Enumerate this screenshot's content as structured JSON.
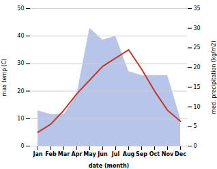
{
  "chart_data": {
    "type": "line",
    "categories": [
      "Jan",
      "Feb",
      "Mar",
      "Apr",
      "May",
      "Jun",
      "Jul",
      "Aug",
      "Sep",
      "Oct",
      "Nov",
      "Dec"
    ],
    "xlabel": "date (month)",
    "ylabel": "max temp (C)",
    "y2label": "med. precipitation (kg/m2)",
    "series": [
      {
        "type": "area",
        "axis": "y2",
        "color": "#b8c4e8",
        "values": [
          9,
          8,
          8,
          13,
          30,
          27,
          28,
          19,
          18,
          18,
          18,
          7
        ]
      },
      {
        "type": "line",
        "color": "#c0392b",
        "values": [
          5,
          8,
          13,
          19,
          24,
          29,
          32,
          35,
          28,
          20,
          13,
          9
        ]
      }
    ],
    "ylim": [
      0,
      50
    ],
    "yticks": [
      0,
      10,
      20,
      30,
      40,
      50
    ],
    "y2lim": [
      0,
      35
    ],
    "y2ticks": [
      0,
      5,
      10,
      15,
      20,
      25,
      30,
      35
    ],
    "grid": true
  }
}
